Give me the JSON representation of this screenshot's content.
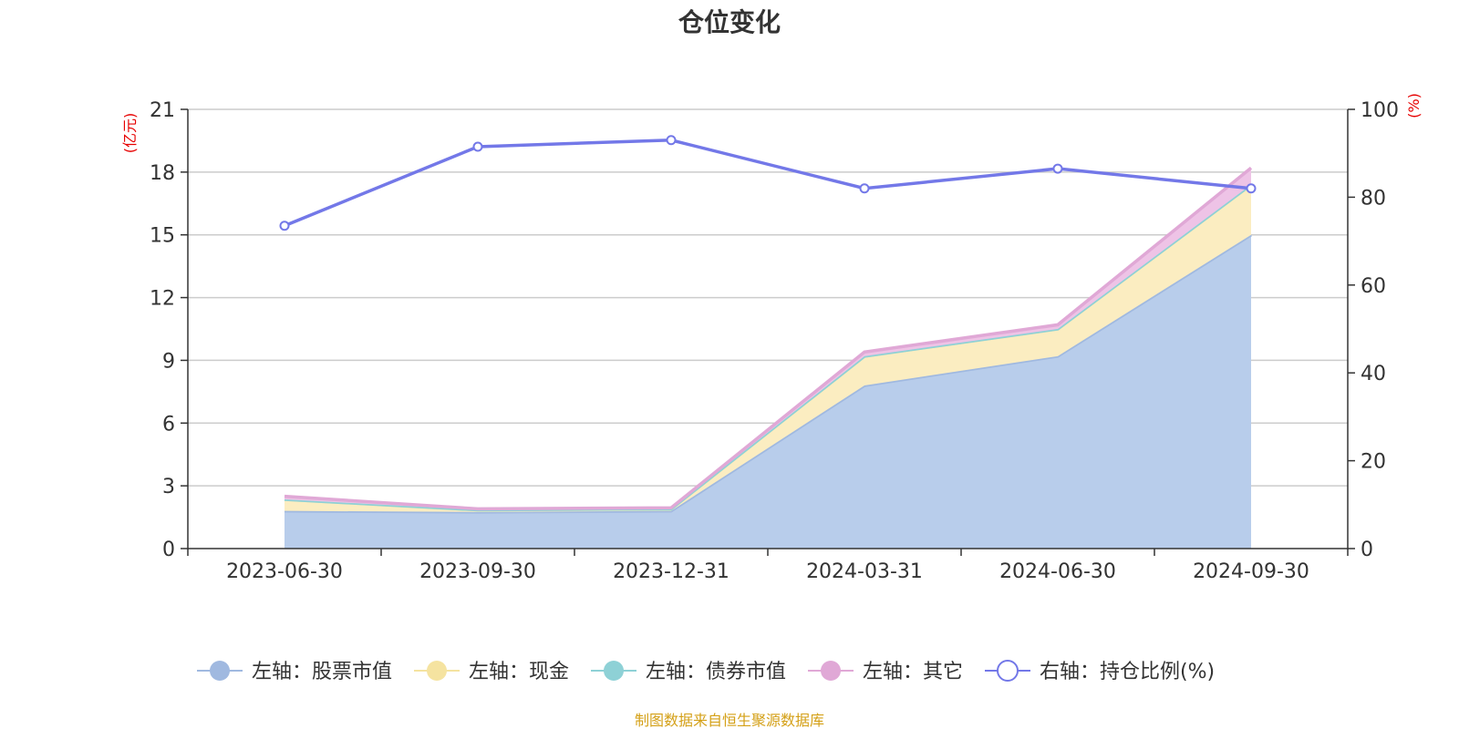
{
  "chart_data": {
    "type": "area",
    "title": "仓位变化",
    "categories": [
      "2023-06-30",
      "2023-09-30",
      "2023-12-31",
      "2024-03-31",
      "2024-06-30",
      "2024-09-30"
    ],
    "left_axis": {
      "unit": "(亿元)",
      "ylim": [
        0,
        21
      ],
      "ticks": [
        0,
        3,
        6,
        9,
        12,
        15,
        18,
        21
      ]
    },
    "right_axis": {
      "unit": "(%)",
      "ylim": [
        0,
        100
      ],
      "ticks": [
        0,
        20,
        40,
        60,
        80,
        100
      ]
    },
    "series": [
      {
        "name": "左轴：股票市值",
        "axis": "left",
        "kind": "stacked-area",
        "color": "#a0b9e0",
        "fill": "#b8cdeb",
        "values": [
          1.8,
          1.75,
          1.8,
          7.8,
          9.2,
          15.0
        ]
      },
      {
        "name": "左轴：现金",
        "axis": "left",
        "kind": "stacked-area",
        "color": "#f5e3a0",
        "fill": "#fbedc1",
        "values": [
          0.55,
          0.1,
          0.1,
          1.4,
          1.3,
          2.4
        ]
      },
      {
        "name": "左轴：债券市值",
        "axis": "left",
        "kind": "stacked-area",
        "color": "#8ed1d6",
        "fill": "#a8dcdf",
        "values": [
          0,
          0,
          0,
          0,
          0,
          0
        ]
      },
      {
        "name": "左轴：其它",
        "axis": "left",
        "kind": "stacked-area",
        "color": "#e0a8d6",
        "fill": "#eec3e6",
        "values": [
          0.15,
          0.05,
          0.05,
          0.2,
          0.2,
          0.8
        ]
      },
      {
        "name": "右轴：持仓比例(%)",
        "axis": "right",
        "kind": "line",
        "color": "#7378e8",
        "values": [
          73.5,
          91.5,
          93.0,
          82.0,
          86.5,
          82.0
        ]
      }
    ],
    "source": "制图数据来自恒生聚源数据库"
  }
}
